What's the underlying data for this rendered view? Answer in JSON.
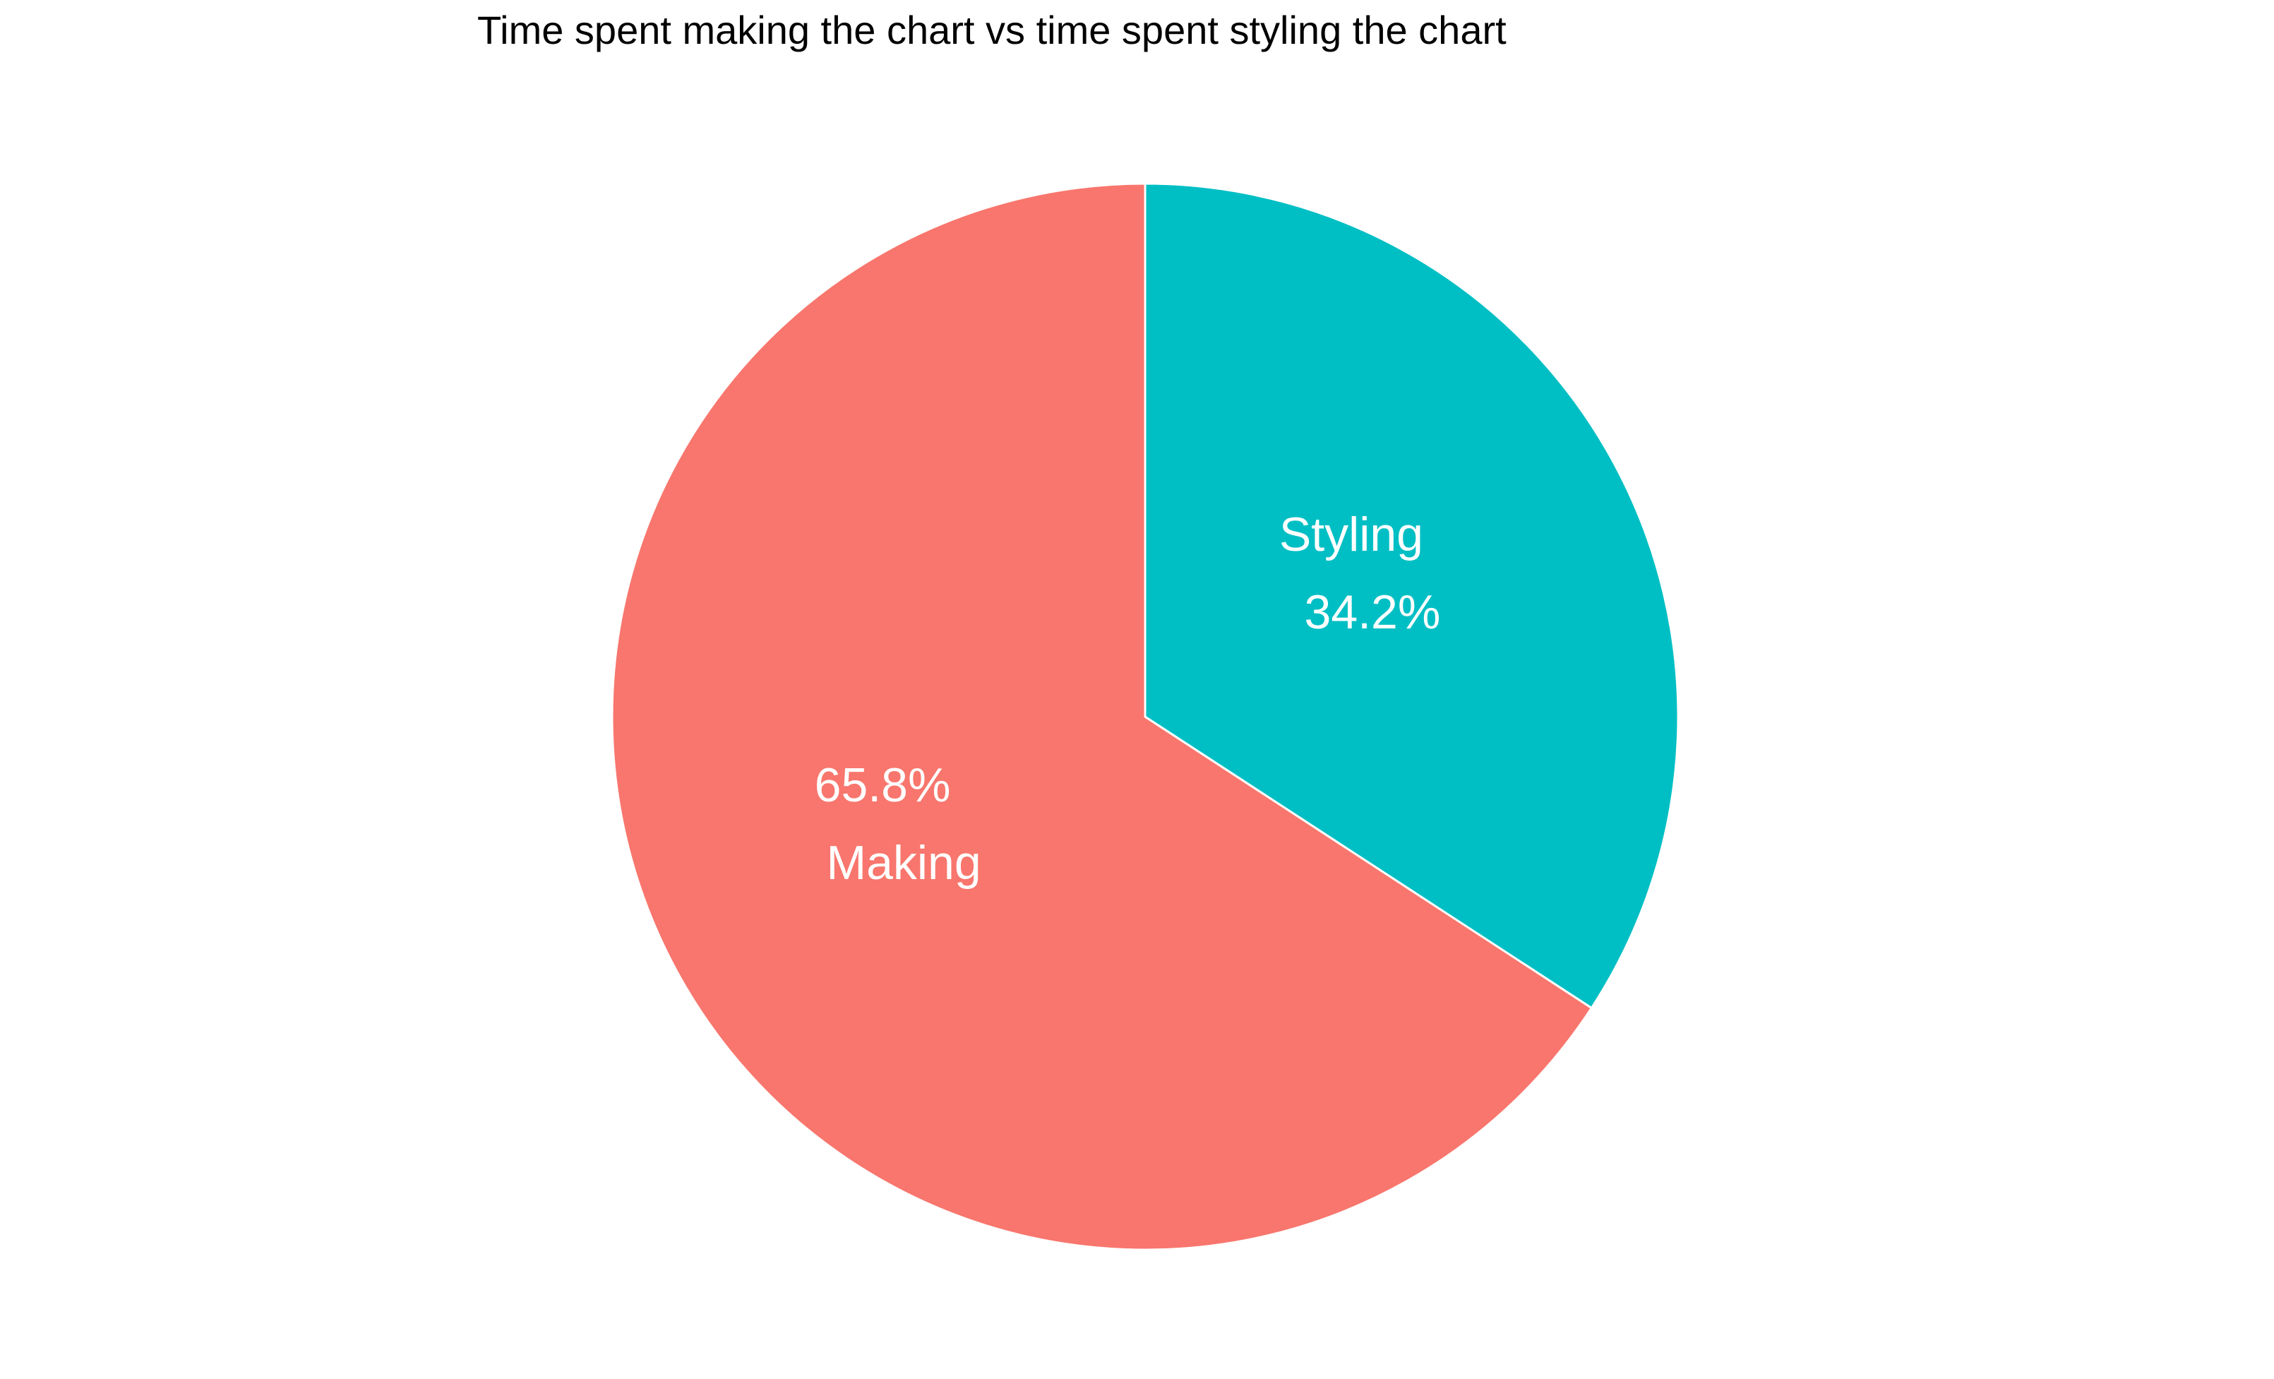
{
  "chart_data": {
    "type": "pie",
    "title": "Time spent making the chart vs time spent styling the chart",
    "categories": [
      "Making",
      "Styling"
    ],
    "values": [
      65.8,
      34.2
    ],
    "value_labels": [
      "65.8%",
      "34.2%"
    ],
    "colors": [
      "#F8766D",
      "#00BFC4"
    ],
    "slice_edge_color": "#ffffff",
    "start": "12 o'clock",
    "direction": "counterclockwise",
    "legend": "none"
  }
}
